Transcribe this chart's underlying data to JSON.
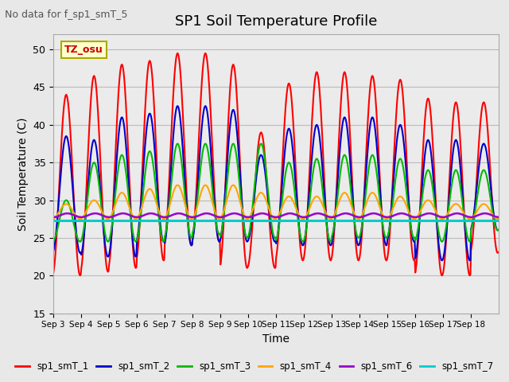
{
  "title": "SP1 Soil Temperature Profile",
  "xlabel": "Time",
  "ylabel": "Soil Temperature (C)",
  "no_data_text": "No data for f_sp1_smT_5",
  "tz_label": "TZ_osu",
  "ylim": [
    15,
    52
  ],
  "yticks": [
    15,
    20,
    25,
    30,
    35,
    40,
    45,
    50
  ],
  "x_tick_labels": [
    "Sep 3",
    "Sep 4",
    "Sep 5",
    "Sep 6",
    "Sep 7",
    "Sep 8",
    "Sep 9",
    "Sep 10",
    "Sep 11",
    "Sep 12",
    "Sep 13",
    "Sep 14",
    "Sep 15",
    "Sep 16",
    "Sep 17",
    "Sep 18"
  ],
  "series": {
    "sp1_smT_1": {
      "color": "#FF0000",
      "linewidth": 1.5
    },
    "sp1_smT_2": {
      "color": "#0000CC",
      "linewidth": 1.5
    },
    "sp1_smT_3": {
      "color": "#00BB00",
      "linewidth": 1.5
    },
    "sp1_smT_4": {
      "color": "#FFA500",
      "linewidth": 1.5
    },
    "sp1_smT_6": {
      "color": "#9900CC",
      "linewidth": 1.8
    },
    "sp1_smT_7": {
      "color": "#00CCCC",
      "linewidth": 2.2
    }
  },
  "legend_entries": [
    {
      "label": "sp1_smT_1",
      "color": "#FF0000"
    },
    {
      "label": "sp1_smT_2",
      "color": "#0000CC"
    },
    {
      "label": "sp1_smT_3",
      "color": "#00BB00"
    },
    {
      "label": "sp1_smT_4",
      "color": "#FFA500"
    },
    {
      "label": "sp1_smT_6",
      "color": "#9900CC"
    },
    {
      "label": "sp1_smT_7",
      "color": "#00CCCC"
    }
  ],
  "background_color": "#E8E8E8",
  "plot_bg_color": "#EBEBEB",
  "n_days": 16,
  "peak1": [
    44.0,
    46.5,
    48.0,
    48.5,
    49.5,
    49.5,
    48.0,
    39.0,
    45.5,
    47.0,
    47.0,
    46.5,
    46.0,
    43.5,
    43.0,
    43.0
  ],
  "trough1": [
    20.0,
    20.5,
    21.0,
    22.0,
    24.0,
    24.5,
    21.0,
    21.0,
    22.0,
    22.0,
    22.0,
    22.0,
    22.0,
    20.0,
    20.0,
    23.0
  ],
  "peak2": [
    38.5,
    38.0,
    41.0,
    41.5,
    42.5,
    42.5,
    42.0,
    36.0,
    39.5,
    40.0,
    41.0,
    41.0,
    40.0,
    38.0,
    38.0,
    37.5
  ],
  "trough2": [
    23.0,
    22.5,
    22.5,
    24.5,
    24.0,
    24.5,
    24.5,
    24.5,
    24.0,
    24.0,
    24.0,
    24.0,
    24.5,
    22.0,
    22.0,
    26.0
  ],
  "peak3": [
    30.0,
    35.0,
    36.0,
    36.5,
    37.5,
    37.5,
    37.5,
    37.5,
    35.0,
    35.5,
    36.0,
    36.0,
    35.5,
    34.0,
    34.0,
    34.0
  ],
  "trough3": [
    24.5,
    24.5,
    24.5,
    24.5,
    25.0,
    25.5,
    25.0,
    25.0,
    24.5,
    24.5,
    25.0,
    25.0,
    25.0,
    24.5,
    24.5,
    26.0
  ],
  "peak4": [
    29.5,
    30.0,
    31.0,
    31.5,
    32.0,
    32.0,
    32.0,
    31.0,
    30.5,
    30.5,
    31.0,
    31.0,
    30.5,
    30.0,
    29.5,
    29.5
  ],
  "trough4": [
    27.5,
    27.5,
    27.5,
    27.5,
    27.5,
    27.5,
    27.5,
    27.5,
    27.5,
    27.5,
    27.5,
    27.5,
    27.5,
    27.5,
    27.5,
    27.5
  ],
  "smT6_base": 28.0,
  "smT7_base": 27.3
}
